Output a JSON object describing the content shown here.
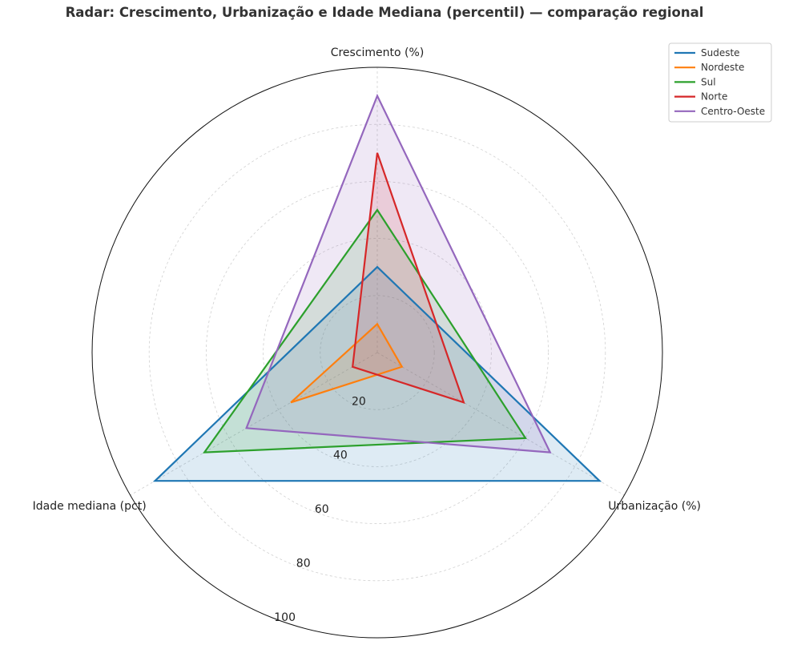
{
  "chart_data": {
    "type": "radar",
    "title": "Radar: Crescimento, Urbanização e Idade Mediana (percentil) — comparação regional",
    "axes": [
      "Crescimento (%)",
      "Urbanização (%)",
      "Idade mediana (pct)"
    ],
    "rlim": [
      0,
      100
    ],
    "rticks": [
      20,
      40,
      60,
      80,
      100
    ],
    "grid": true,
    "legend_position": "top-right",
    "series": [
      {
        "name": "Sudeste",
        "color": "#1f77b4",
        "values": [
          30,
          90,
          90
        ]
      },
      {
        "name": "Nordeste",
        "color": "#ff7f0e",
        "values": [
          10,
          10,
          35
        ]
      },
      {
        "name": "Sul",
        "color": "#2ca02c",
        "values": [
          50,
          60,
          70
        ]
      },
      {
        "name": "Norte",
        "color": "#d62728",
        "values": [
          70,
          35,
          10
        ]
      },
      {
        "name": "Centro-Oeste",
        "color": "#9467bd",
        "values": [
          90,
          70,
          53
        ]
      }
    ]
  }
}
